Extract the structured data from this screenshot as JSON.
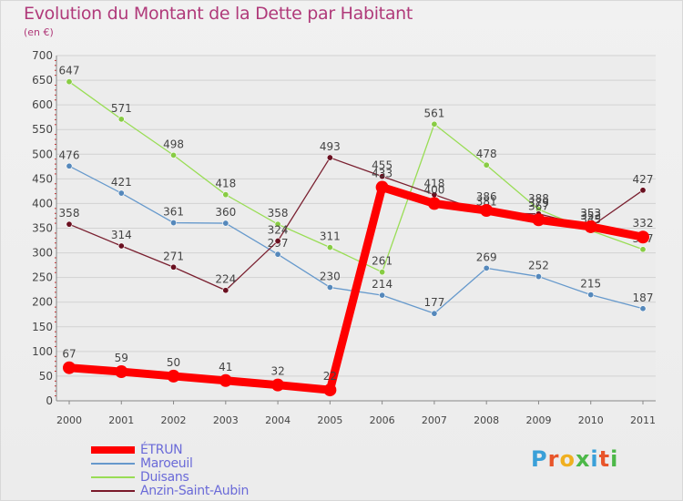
{
  "title": "Evolution du Montant de la Dette par Habitant",
  "subtitle": "(en €)",
  "logo": {
    "text": "Proxiti",
    "colors": [
      "#3aa0d8",
      "#e8552a",
      "#f0b020",
      "#4cb848",
      "#3aa0d8",
      "#e8552a",
      "#4cb848"
    ]
  },
  "legend": {
    "items": [
      {
        "label": "ÉTRUN",
        "color": "#ff0000",
        "width": 8
      },
      {
        "label": "Maroeuil",
        "color": "#6699cc",
        "width": 2
      },
      {
        "label": "Duisans",
        "color": "#99dd55",
        "width": 2
      },
      {
        "label": "Anzin-Saint-Aubin",
        "color": "#7a1a2a",
        "width": 2
      }
    ]
  },
  "chart_data": {
    "type": "line",
    "title": "Evolution du Montant de la Dette par Habitant",
    "subtitle": "(en €)",
    "xlabel": "",
    "ylabel": "",
    "x": [
      "2000",
      "2001",
      "2002",
      "2003",
      "2004",
      "2005",
      "2006",
      "2007",
      "2008",
      "2009",
      "2010",
      "2011"
    ],
    "ylim": [
      0,
      700
    ],
    "yticks": [
      0,
      50,
      100,
      150,
      200,
      250,
      300,
      350,
      400,
      450,
      500,
      550,
      600,
      650,
      700
    ],
    "grid": "horizontal",
    "legend_position": "bottom-left",
    "series": [
      {
        "name": "Duisans",
        "color": "#99dd55",
        "marker_color": "#88cc44",
        "values": [
          647,
          571,
          498,
          418,
          358,
          311,
          261,
          561,
          478,
          388,
          345,
          307
        ],
        "labels": [
          "647",
          "571",
          "498",
          "418",
          "358",
          "311",
          "261",
          "561",
          "478",
          "388",
          "345",
          "307"
        ]
      },
      {
        "name": "Maroeuil",
        "color": "#6699cc",
        "marker_color": "#5588bb",
        "values": [
          476,
          421,
          361,
          360,
          297,
          230,
          214,
          177,
          269,
          252,
          215,
          187
        ],
        "labels": [
          "476",
          "421",
          "361",
          "360",
          "297",
          "230",
          "214",
          "177",
          "269",
          "252",
          "215",
          "187"
        ]
      },
      {
        "name": "Anzin-Saint-Aubin",
        "color": "#7a2030",
        "marker_color": "#6a1020",
        "values": [
          358,
          314,
          271,
          224,
          324,
          493,
          455,
          418,
          381,
          379,
          353,
          427
        ],
        "labels": [
          "358",
          "314",
          "271",
          "224",
          "324",
          "493",
          "455",
          "418",
          "381",
          "379",
          "353",
          "427"
        ]
      },
      {
        "name": "ÉTRUN",
        "color": "#ff0000",
        "marker_color": "#ff0000",
        "values": [
          67,
          59,
          50,
          41,
          32,
          22,
          433,
          400,
          386,
          367,
          353,
          332
        ],
        "labels": [
          "67",
          "59",
          "50",
          "41",
          "32",
          "22",
          "433",
          "400",
          "386",
          "367",
          "353",
          "332"
        ]
      }
    ]
  }
}
